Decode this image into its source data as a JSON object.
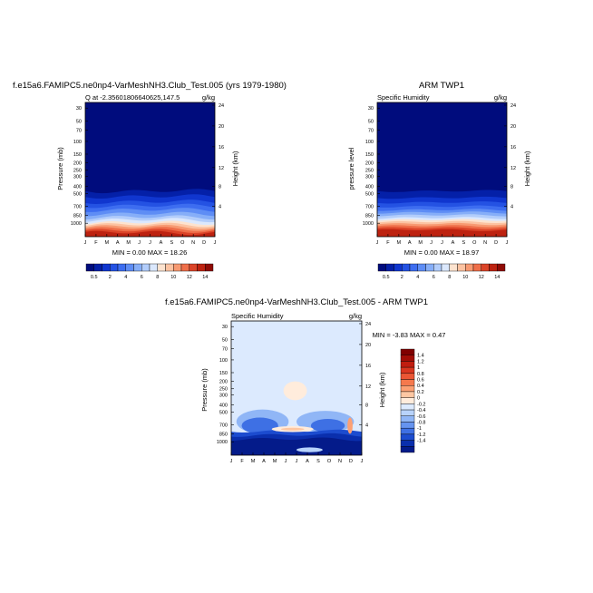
{
  "panels": [
    {
      "title": "f.e15a6.FAMIPC5.ne0np4-VarMeshNH3.Club_Test.005 (yrs 1979-1980)",
      "left_string": "Q at -2.35601806640625,147.5",
      "right_string": "g/kg",
      "ylabel": "Pressure (mb)",
      "ylabel_right": "Height (km)",
      "min_max": "MIN =   0.00 MAX =  18.26"
    },
    {
      "title": "ARM TWP1",
      "left_string": "Specific Humidity",
      "right_string": "g/kg",
      "ylabel": "pressure level",
      "ylabel_right": "Height (km)",
      "min_max": "MIN =   0.00 MAX =  18.97"
    },
    {
      "title": "f.e15a6.FAMIPC5.ne0np4-VarMeshNH3.Club_Test.005 - ARM TWP1",
      "left_string": "Specific Humidity",
      "right_string": "g/kg",
      "ylabel": "Pressure (mb)",
      "ylabel_right": "Height (km)",
      "min_max": "MIN =  -3.83 MAX =    0.47"
    }
  ],
  "chart_data": [
    {
      "type": "heatmap",
      "title": "f.e15a6.FAMIPC5.ne0np4-VarMeshNH3.Club_Test.005 (yrs 1979-1980)",
      "x_ticks": [
        "J",
        "F",
        "M",
        "A",
        "M",
        "J",
        "J",
        "A",
        "S",
        "O",
        "N",
        "D",
        "J"
      ],
      "y_ticks": [
        "30",
        "50",
        "70",
        "100",
        "150",
        "200",
        "250",
        "300",
        "400",
        "500",
        "700",
        "850",
        "1000"
      ],
      "y_ticks_right": [
        "24",
        "20",
        "16",
        "12",
        "8",
        "4"
      ],
      "xlabel": "",
      "ylabel": "Pressure (mb)",
      "ylabel_right": "Height (km)",
      "colorbar_labels": [
        "0.5",
        "2",
        "4",
        "6",
        "8",
        "10",
        "12",
        "14"
      ],
      "ylim": [
        1000,
        20
      ],
      "y_scale": "log",
      "min": 0.0,
      "max": 18.26
    },
    {
      "type": "heatmap",
      "title": "ARM TWP1",
      "x_ticks": [
        "J",
        "F",
        "M",
        "A",
        "M",
        "J",
        "J",
        "A",
        "S",
        "O",
        "N",
        "D",
        "J"
      ],
      "y_ticks": [
        "30",
        "50",
        "70",
        "100",
        "150",
        "200",
        "250",
        "300",
        "400",
        "500",
        "700",
        "850",
        "1000"
      ],
      "y_ticks_right": [
        "24",
        "20",
        "16",
        "12",
        "8",
        "4"
      ],
      "xlabel": "",
      "ylabel": "pressure level",
      "ylabel_right": "Height (km)",
      "colorbar_labels": [
        "0.5",
        "2",
        "4",
        "6",
        "8",
        "10",
        "12",
        "14"
      ],
      "ylim": [
        1000,
        20
      ],
      "y_scale": "log",
      "min": 0.0,
      "max": 18.97
    },
    {
      "type": "heatmap",
      "title": "f.e15a6.FAMIPC5.ne0np4-VarMeshNH3.Club_Test.005 - ARM TWP1",
      "x_ticks": [
        "J",
        "F",
        "M",
        "A",
        "M",
        "J",
        "J",
        "A",
        "S",
        "O",
        "N",
        "D",
        "J"
      ],
      "y_ticks": [
        "30",
        "50",
        "70",
        "100",
        "150",
        "200",
        "250",
        "300",
        "400",
        "500",
        "700",
        "850",
        "1000"
      ],
      "y_ticks_right": [
        "24",
        "20",
        "16",
        "12",
        "8",
        "4"
      ],
      "xlabel": "",
      "ylabel": "Pressure (mb)",
      "ylabel_right": "Height (km)",
      "colorbar_labels": [
        "1.4",
        "1.2",
        "1",
        "0.8",
        "0.6",
        "0.4",
        "0.2",
        "0",
        "-0.2",
        "-0.4",
        "-0.6",
        "-0.8",
        "-1",
        "-1.2",
        "-1.4"
      ],
      "ylim": [
        1000,
        20
      ],
      "y_scale": "log",
      "min": -3.83,
      "max": 0.47
    }
  ],
  "colors": {
    "seq": [
      "#000c7d",
      "#0420a8",
      "#1036cf",
      "#2452e3",
      "#3d6df0",
      "#5e8df5",
      "#86aef8",
      "#b2cdfb",
      "#dbe8fd",
      "#fde3cf",
      "#fcc3a2",
      "#f79a72",
      "#ef6f4a",
      "#db4428",
      "#bd2210",
      "#8f0b05"
    ],
    "diff": [
      "#800000",
      "#a20d06",
      "#c01d0f",
      "#d9361f",
      "#eb5634",
      "#f5794d",
      "#fca074",
      "#fdc7a3",
      "#ffecdc",
      "#dceafe",
      "#b8d3fb",
      "#90b6f6",
      "#6694ef",
      "#3e70e4",
      "#1c4ccf",
      "#0a2fad",
      "#041b8a"
    ]
  }
}
